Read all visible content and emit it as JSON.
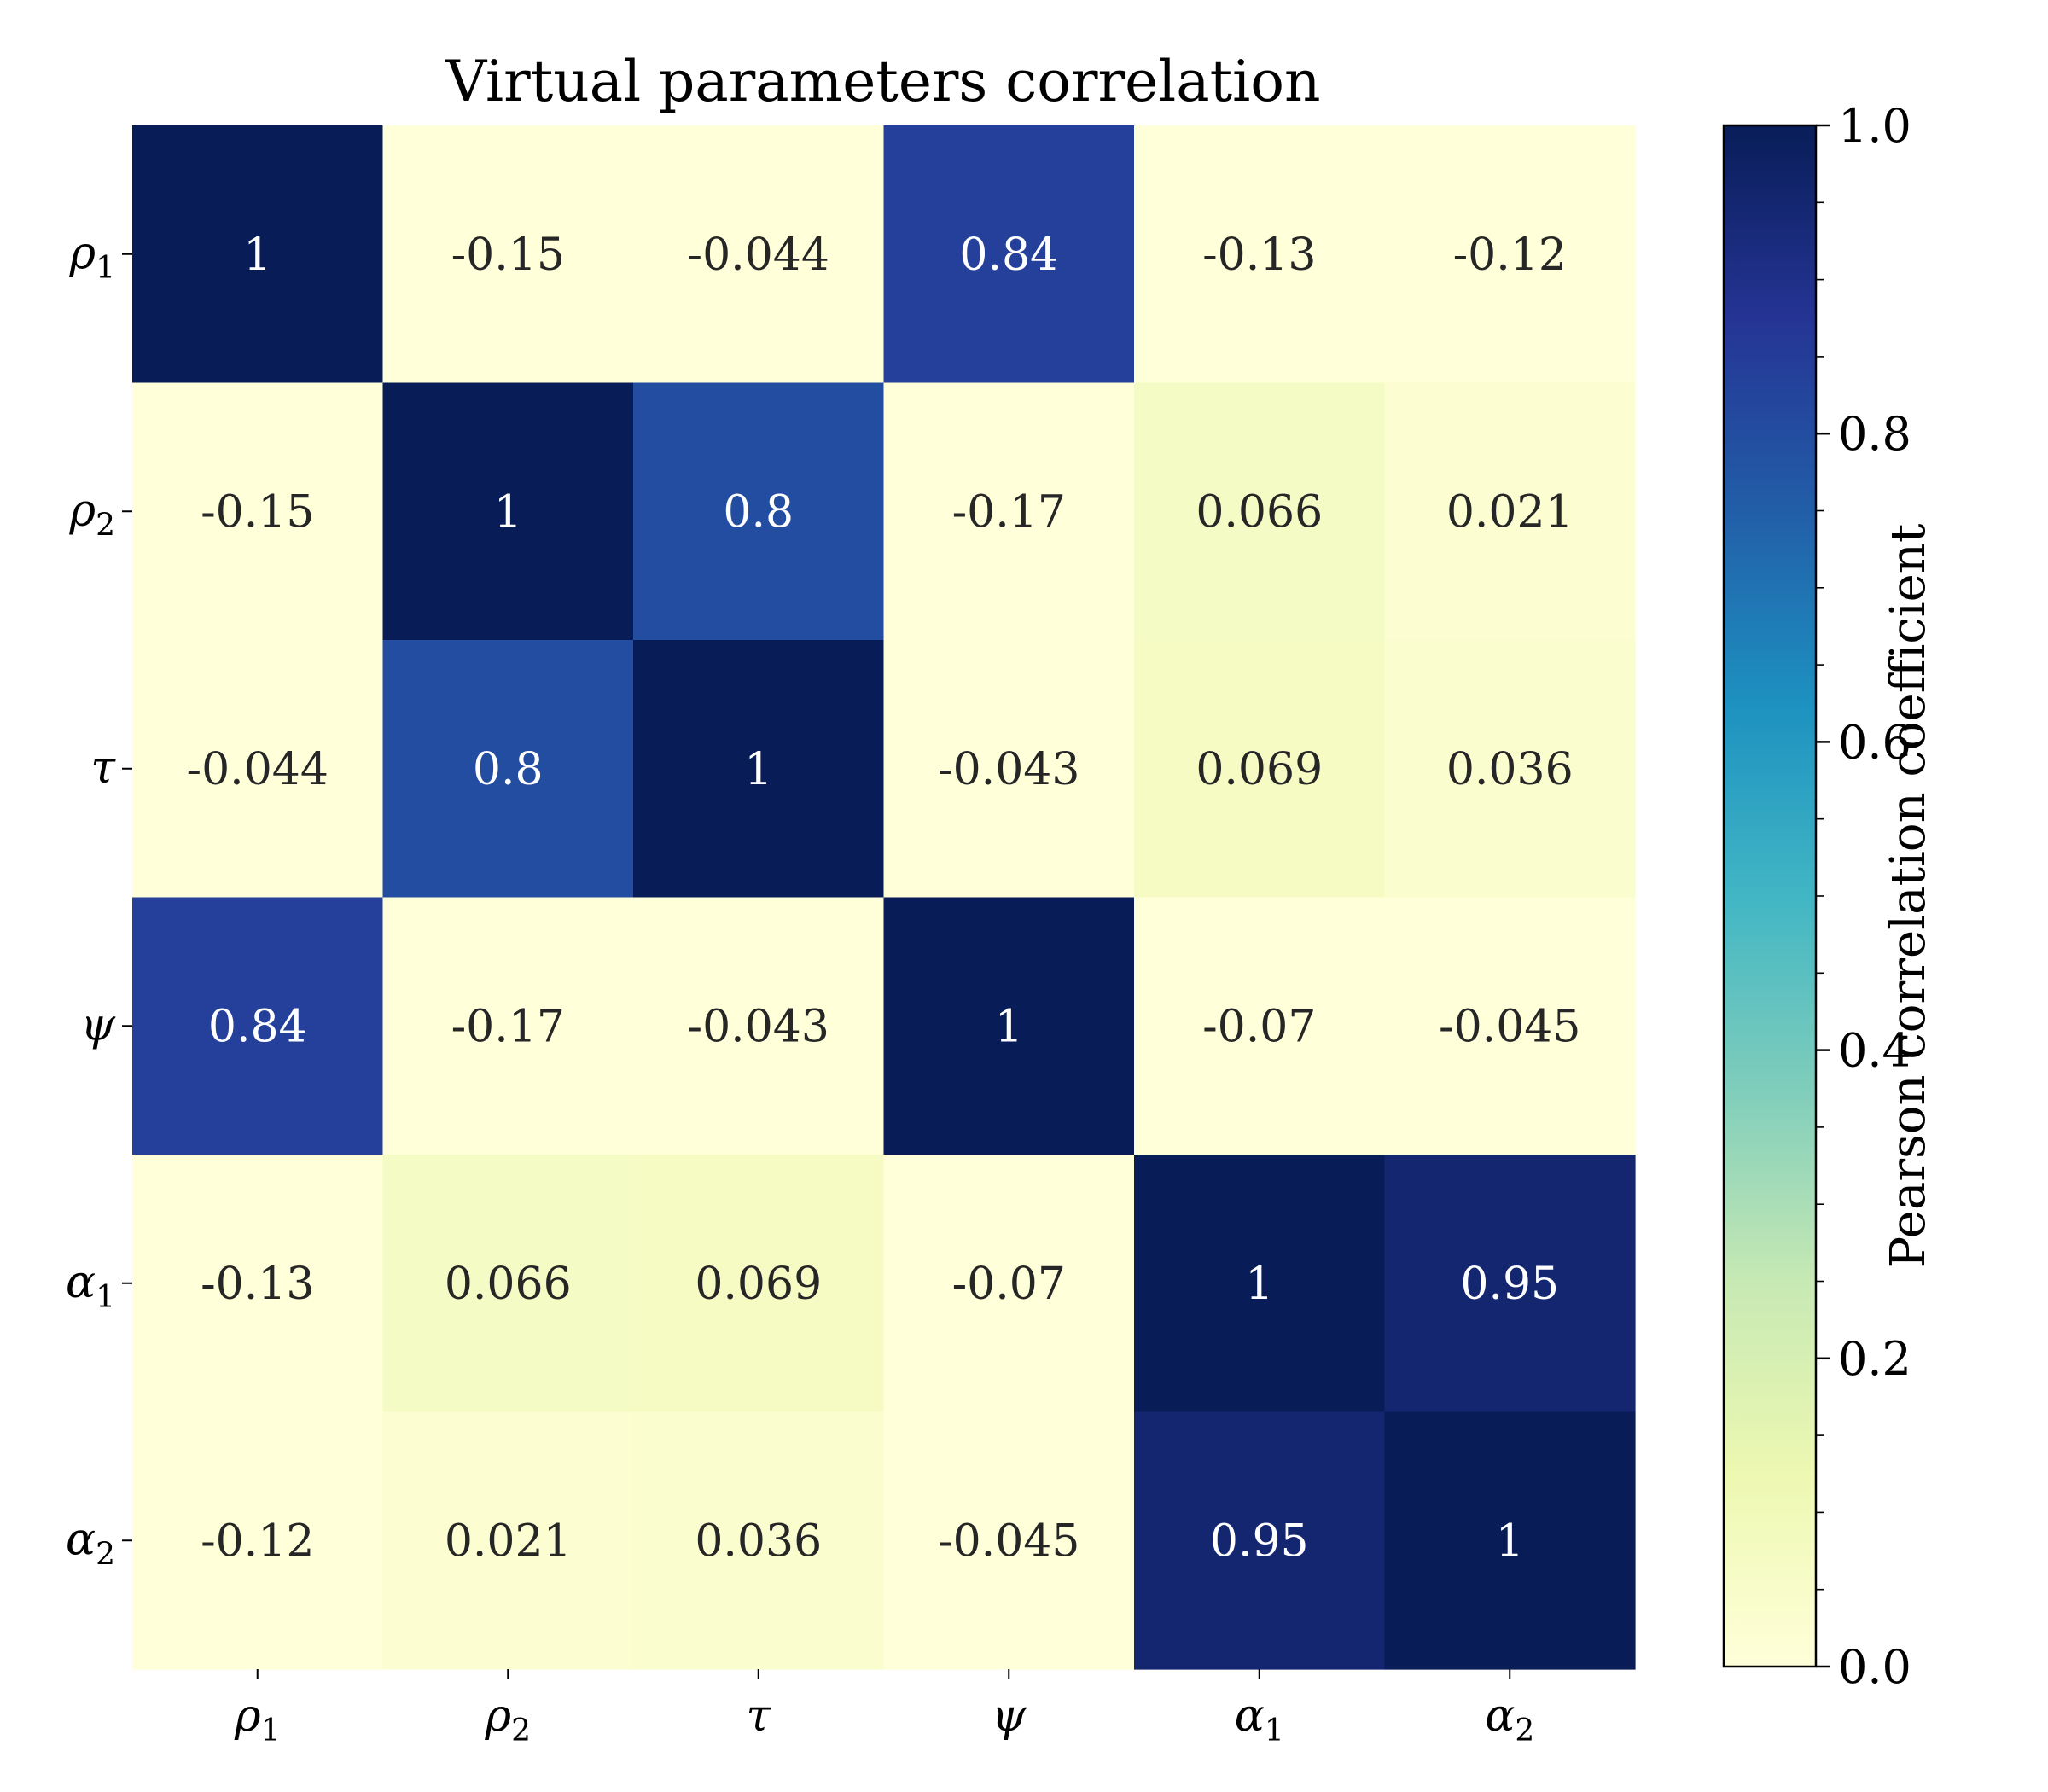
{
  "chart_data": {
    "type": "heatmap",
    "title": "Virtual parameters correlation",
    "rows": [
      {
        "symbol": "ρ",
        "sub": "1"
      },
      {
        "symbol": "ρ",
        "sub": "2"
      },
      {
        "symbol": "τ",
        "sub": ""
      },
      {
        "symbol": "ψ",
        "sub": ""
      },
      {
        "symbol": "α",
        "sub": "1"
      },
      {
        "symbol": "α",
        "sub": "2"
      }
    ],
    "columns": [
      {
        "symbol": "ρ",
        "sub": "1"
      },
      {
        "symbol": "ρ",
        "sub": "2"
      },
      {
        "symbol": "τ",
        "sub": ""
      },
      {
        "symbol": "ψ",
        "sub": ""
      },
      {
        "symbol": "α",
        "sub": "1"
      },
      {
        "symbol": "α",
        "sub": "2"
      }
    ],
    "values": [
      [
        1,
        -0.15,
        -0.044,
        0.84,
        -0.13,
        -0.12
      ],
      [
        -0.15,
        1,
        0.8,
        -0.17,
        0.066,
        0.021
      ],
      [
        -0.044,
        0.8,
        1,
        -0.043,
        0.069,
        0.036
      ],
      [
        0.84,
        -0.17,
        -0.043,
        1,
        -0.07,
        -0.045
      ],
      [
        -0.13,
        0.066,
        0.069,
        -0.07,
        1,
        0.95
      ],
      [
        -0.12,
        0.021,
        0.036,
        -0.045,
        0.95,
        1
      ]
    ],
    "cell_labels": [
      [
        "1",
        "-0.15",
        "-0.044",
        "0.84",
        "-0.13",
        "-0.12"
      ],
      [
        "-0.15",
        "1",
        "0.8",
        "-0.17",
        "0.066",
        "0.021"
      ],
      [
        "-0.044",
        "0.8",
        "1",
        "-0.043",
        "0.069",
        "0.036"
      ],
      [
        "0.84",
        "-0.17",
        "-0.043",
        "1",
        "-0.07",
        "-0.045"
      ],
      [
        "-0.13",
        "0.066",
        "0.069",
        "-0.07",
        "1",
        "0.95"
      ],
      [
        "-0.12",
        "0.021",
        "0.036",
        "-0.045",
        "0.95",
        "1"
      ]
    ],
    "colorbar": {
      "label": "Pearson correlation coefficient",
      "range": [
        0.0,
        1.0
      ],
      "ticks": [
        0.0,
        0.2,
        0.4,
        0.6,
        0.8,
        1.0
      ],
      "tick_labels": [
        "0.0",
        "0.2",
        "0.4",
        "0.6",
        "0.8",
        "1.0"
      ],
      "colormap": "YlGnBu",
      "colormap_stops": [
        "#ffffd9",
        "#edf8b1",
        "#c7e9b4",
        "#7fcdbb",
        "#41b6c4",
        "#1d91c0",
        "#225ea8",
        "#253494",
        "#081d58"
      ]
    },
    "grid": false,
    "light_text_color": "#ffffff",
    "dark_text_color": "#262626"
  }
}
